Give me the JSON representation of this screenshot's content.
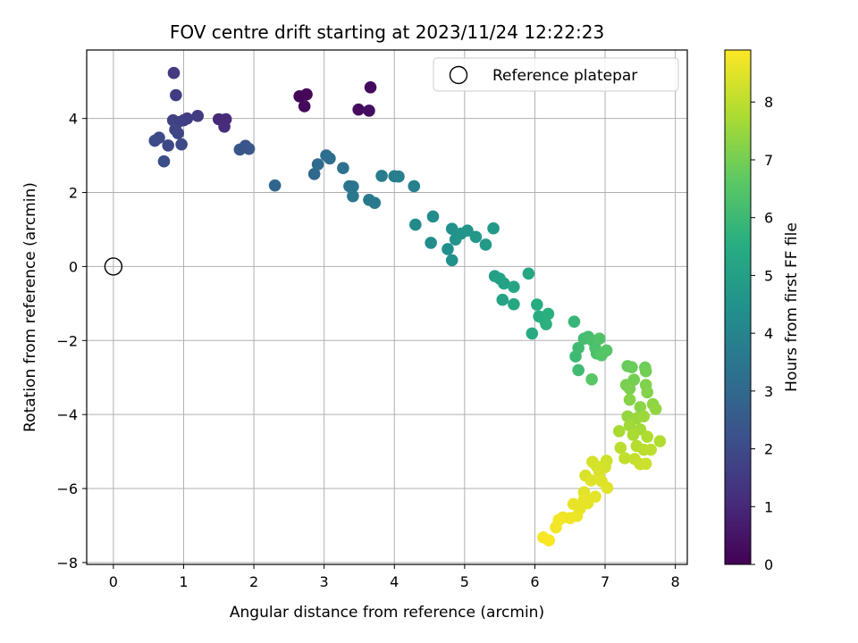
{
  "chart_data": {
    "type": "scatter",
    "title": "FOV centre drift starting at 2023/11/24 12:22:23",
    "xlabel": "Angular distance from reference (arcmin)",
    "ylabel": "Rotation from reference (arcmin)",
    "xlim": [
      -0.38,
      8.17
    ],
    "ylim": [
      -8.05,
      5.85
    ],
    "xticks": [
      "0",
      "1",
      "2",
      "3",
      "4",
      "5",
      "6",
      "7",
      "8"
    ],
    "yticks": [
      "−8",
      "−6",
      "−4",
      "−2",
      "0",
      "2",
      "4"
    ],
    "grid": true,
    "legend": {
      "placement": "upper-right",
      "entries": [
        "Reference platepar"
      ]
    },
    "reference_point": {
      "x": 0,
      "y": 0
    },
    "colorbar": {
      "label": "Hours from first FF file",
      "range": [
        0,
        8.9
      ],
      "ticks": [
        "0",
        "1",
        "2",
        "3",
        "4",
        "5",
        "6",
        "7",
        "8"
      ],
      "colormap": "viridis"
    },
    "points": [
      {
        "x": 2.65,
        "y": 4.6,
        "t": 0.1
      },
      {
        "x": 2.75,
        "y": 4.65,
        "t": 0.15
      },
      {
        "x": 2.72,
        "y": 4.33,
        "t": 0.2
      },
      {
        "x": 3.49,
        "y": 4.24,
        "t": 0.3
      },
      {
        "x": 3.64,
        "y": 4.21,
        "t": 0.35
      },
      {
        "x": 3.66,
        "y": 4.84,
        "t": 0.25
      },
      {
        "x": 1.5,
        "y": 3.98,
        "t": 1.0
      },
      {
        "x": 1.6,
        "y": 3.98,
        "t": 1.05
      },
      {
        "x": 1.58,
        "y": 3.78,
        "t": 1.1
      },
      {
        "x": 0.86,
        "y": 5.23,
        "t": 1.5
      },
      {
        "x": 0.89,
        "y": 4.63,
        "t": 1.6
      },
      {
        "x": 1.2,
        "y": 4.07,
        "t": 1.55
      },
      {
        "x": 1.05,
        "y": 4.0,
        "t": 1.6
      },
      {
        "x": 0.85,
        "y": 3.95,
        "t": 1.7
      },
      {
        "x": 0.92,
        "y": 3.9,
        "t": 1.75
      },
      {
        "x": 1.0,
        "y": 3.95,
        "t": 1.65
      },
      {
        "x": 0.88,
        "y": 3.7,
        "t": 1.8
      },
      {
        "x": 0.92,
        "y": 3.6,
        "t": 1.85
      },
      {
        "x": 0.78,
        "y": 3.27,
        "t": 1.9
      },
      {
        "x": 0.97,
        "y": 3.3,
        "t": 1.95
      },
      {
        "x": 0.65,
        "y": 3.48,
        "t": 2.0
      },
      {
        "x": 0.59,
        "y": 3.4,
        "t": 2.05
      },
      {
        "x": 0.72,
        "y": 2.84,
        "t": 2.1
      },
      {
        "x": 1.88,
        "y": 3.26,
        "t": 2.3
      },
      {
        "x": 1.8,
        "y": 3.16,
        "t": 2.35
      },
      {
        "x": 1.93,
        "y": 3.18,
        "t": 2.4
      },
      {
        "x": 2.3,
        "y": 2.19,
        "t": 2.9
      },
      {
        "x": 2.86,
        "y": 2.5,
        "t": 3.0
      },
      {
        "x": 2.91,
        "y": 2.76,
        "t": 3.1
      },
      {
        "x": 3.03,
        "y": 3.0,
        "t": 3.15
      },
      {
        "x": 3.08,
        "y": 2.92,
        "t": 3.2
      },
      {
        "x": 3.27,
        "y": 2.66,
        "t": 3.3
      },
      {
        "x": 3.36,
        "y": 2.17,
        "t": 3.4
      },
      {
        "x": 3.41,
        "y": 2.16,
        "t": 3.45
      },
      {
        "x": 3.41,
        "y": 1.9,
        "t": 3.5
      },
      {
        "x": 3.64,
        "y": 1.8,
        "t": 3.55
      },
      {
        "x": 3.72,
        "y": 1.72,
        "t": 3.6
      },
      {
        "x": 3.82,
        "y": 2.45,
        "t": 3.7
      },
      {
        "x": 4.0,
        "y": 2.44,
        "t": 3.75
      },
      {
        "x": 4.06,
        "y": 2.43,
        "t": 3.8
      },
      {
        "x": 4.28,
        "y": 2.17,
        "t": 3.85
      },
      {
        "x": 4.3,
        "y": 1.13,
        "t": 4.2
      },
      {
        "x": 4.55,
        "y": 1.35,
        "t": 4.3
      },
      {
        "x": 4.52,
        "y": 0.64,
        "t": 4.35
      },
      {
        "x": 4.76,
        "y": 0.47,
        "t": 4.4
      },
      {
        "x": 4.82,
        "y": 0.17,
        "t": 4.45
      },
      {
        "x": 4.82,
        "y": 1.02,
        "t": 4.5
      },
      {
        "x": 4.87,
        "y": 0.73,
        "t": 4.55
      },
      {
        "x": 4.95,
        "y": 0.89,
        "t": 4.6
      },
      {
        "x": 5.04,
        "y": 0.97,
        "t": 4.65
      },
      {
        "x": 5.16,
        "y": 0.8,
        "t": 4.7
      },
      {
        "x": 5.3,
        "y": 0.59,
        "t": 4.75
      },
      {
        "x": 5.41,
        "y": 1.03,
        "t": 4.8
      },
      {
        "x": 5.43,
        "y": -0.26,
        "t": 5.0
      },
      {
        "x": 5.5,
        "y": -0.33,
        "t": 5.05
      },
      {
        "x": 5.56,
        "y": -0.46,
        "t": 5.1
      },
      {
        "x": 5.54,
        "y": -0.9,
        "t": 5.15
      },
      {
        "x": 5.7,
        "y": -0.55,
        "t": 5.2
      },
      {
        "x": 5.7,
        "y": -1.02,
        "t": 5.25
      },
      {
        "x": 5.91,
        "y": -0.19,
        "t": 5.3
      },
      {
        "x": 5.96,
        "y": -1.81,
        "t": 5.4
      },
      {
        "x": 6.03,
        "y": -1.03,
        "t": 5.45
      },
      {
        "x": 6.06,
        "y": -1.35,
        "t": 5.5
      },
      {
        "x": 6.14,
        "y": -1.45,
        "t": 5.55
      },
      {
        "x": 6.19,
        "y": -1.28,
        "t": 5.6
      },
      {
        "x": 6.16,
        "y": -1.56,
        "t": 5.65
      },
      {
        "x": 6.56,
        "y": -1.49,
        "t": 5.9
      },
      {
        "x": 6.58,
        "y": -2.43,
        "t": 6.0
      },
      {
        "x": 6.62,
        "y": -2.2,
        "t": 6.05
      },
      {
        "x": 6.62,
        "y": -2.8,
        "t": 6.1
      },
      {
        "x": 6.7,
        "y": -1.95,
        "t": 6.15
      },
      {
        "x": 6.76,
        "y": -1.9,
        "t": 6.2
      },
      {
        "x": 6.82,
        "y": -2.0,
        "t": 6.25
      },
      {
        "x": 6.86,
        "y": -2.2,
        "t": 6.3
      },
      {
        "x": 6.88,
        "y": -2.35,
        "t": 6.35
      },
      {
        "x": 6.92,
        "y": -1.95,
        "t": 6.4
      },
      {
        "x": 6.95,
        "y": -2.4,
        "t": 6.45
      },
      {
        "x": 7.02,
        "y": -2.27,
        "t": 6.5
      },
      {
        "x": 6.81,
        "y": -3.05,
        "t": 6.55
      },
      {
        "x": 7.32,
        "y": -2.69,
        "t": 6.8
      },
      {
        "x": 7.38,
        "y": -2.72,
        "t": 6.85
      },
      {
        "x": 7.57,
        "y": -2.73,
        "t": 6.9
      },
      {
        "x": 7.58,
        "y": -2.83,
        "t": 6.95
      },
      {
        "x": 7.41,
        "y": -3.06,
        "t": 7.0
      },
      {
        "x": 7.3,
        "y": -3.2,
        "t": 7.05
      },
      {
        "x": 7.35,
        "y": -3.3,
        "t": 7.1
      },
      {
        "x": 7.58,
        "y": -3.2,
        "t": 7.15
      },
      {
        "x": 7.6,
        "y": -3.4,
        "t": 7.2
      },
      {
        "x": 7.35,
        "y": -3.6,
        "t": 7.25
      },
      {
        "x": 7.5,
        "y": -3.8,
        "t": 7.3
      },
      {
        "x": 7.68,
        "y": -3.72,
        "t": 7.35
      },
      {
        "x": 7.72,
        "y": -3.85,
        "t": 7.4
      },
      {
        "x": 7.32,
        "y": -4.05,
        "t": 7.45
      },
      {
        "x": 7.45,
        "y": -4.1,
        "t": 7.5
      },
      {
        "x": 7.55,
        "y": -4.05,
        "t": 7.55
      },
      {
        "x": 7.35,
        "y": -4.3,
        "t": 7.6
      },
      {
        "x": 7.5,
        "y": -4.4,
        "t": 7.65
      },
      {
        "x": 7.2,
        "y": -4.45,
        "t": 7.7
      },
      {
        "x": 7.4,
        "y": -4.55,
        "t": 7.75
      },
      {
        "x": 7.6,
        "y": -4.6,
        "t": 7.8
      },
      {
        "x": 7.78,
        "y": -4.72,
        "t": 7.85
      },
      {
        "x": 7.45,
        "y": -4.85,
        "t": 7.9
      },
      {
        "x": 7.55,
        "y": -4.95,
        "t": 7.95
      },
      {
        "x": 7.65,
        "y": -4.95,
        "t": 8.0
      },
      {
        "x": 7.22,
        "y": -4.9,
        "t": 7.95
      },
      {
        "x": 7.28,
        "y": -5.18,
        "t": 8.05
      },
      {
        "x": 7.42,
        "y": -5.2,
        "t": 8.1
      },
      {
        "x": 7.5,
        "y": -5.34,
        "t": 8.15
      },
      {
        "x": 7.58,
        "y": -5.33,
        "t": 8.2
      },
      {
        "x": 7.02,
        "y": -5.25,
        "t": 8.25
      },
      {
        "x": 7.0,
        "y": -5.42,
        "t": 8.3
      },
      {
        "x": 6.82,
        "y": -5.28,
        "t": 8.35
      },
      {
        "x": 6.88,
        "y": -5.4,
        "t": 8.35
      },
      {
        "x": 6.92,
        "y": -5.55,
        "t": 8.4
      },
      {
        "x": 6.72,
        "y": -5.65,
        "t": 8.4
      },
      {
        "x": 6.8,
        "y": -5.78,
        "t": 8.45
      },
      {
        "x": 6.95,
        "y": -5.8,
        "t": 8.45
      },
      {
        "x": 7.03,
        "y": -5.98,
        "t": 8.5
      },
      {
        "x": 6.7,
        "y": -6.1,
        "t": 8.5
      },
      {
        "x": 6.86,
        "y": -6.22,
        "t": 8.55
      },
      {
        "x": 6.75,
        "y": -6.4,
        "t": 8.55
      },
      {
        "x": 6.55,
        "y": -6.42,
        "t": 8.6
      },
      {
        "x": 6.64,
        "y": -6.55,
        "t": 8.6
      },
      {
        "x": 6.7,
        "y": -6.3,
        "t": 8.6
      },
      {
        "x": 6.6,
        "y": -6.74,
        "t": 8.65
      },
      {
        "x": 6.5,
        "y": -6.8,
        "t": 8.7
      },
      {
        "x": 6.4,
        "y": -6.78,
        "t": 8.7
      },
      {
        "x": 6.34,
        "y": -6.85,
        "t": 8.75
      },
      {
        "x": 6.3,
        "y": -7.05,
        "t": 8.75
      },
      {
        "x": 6.12,
        "y": -7.32,
        "t": 8.8
      },
      {
        "x": 6.2,
        "y": -7.4,
        "t": 8.85
      }
    ]
  }
}
